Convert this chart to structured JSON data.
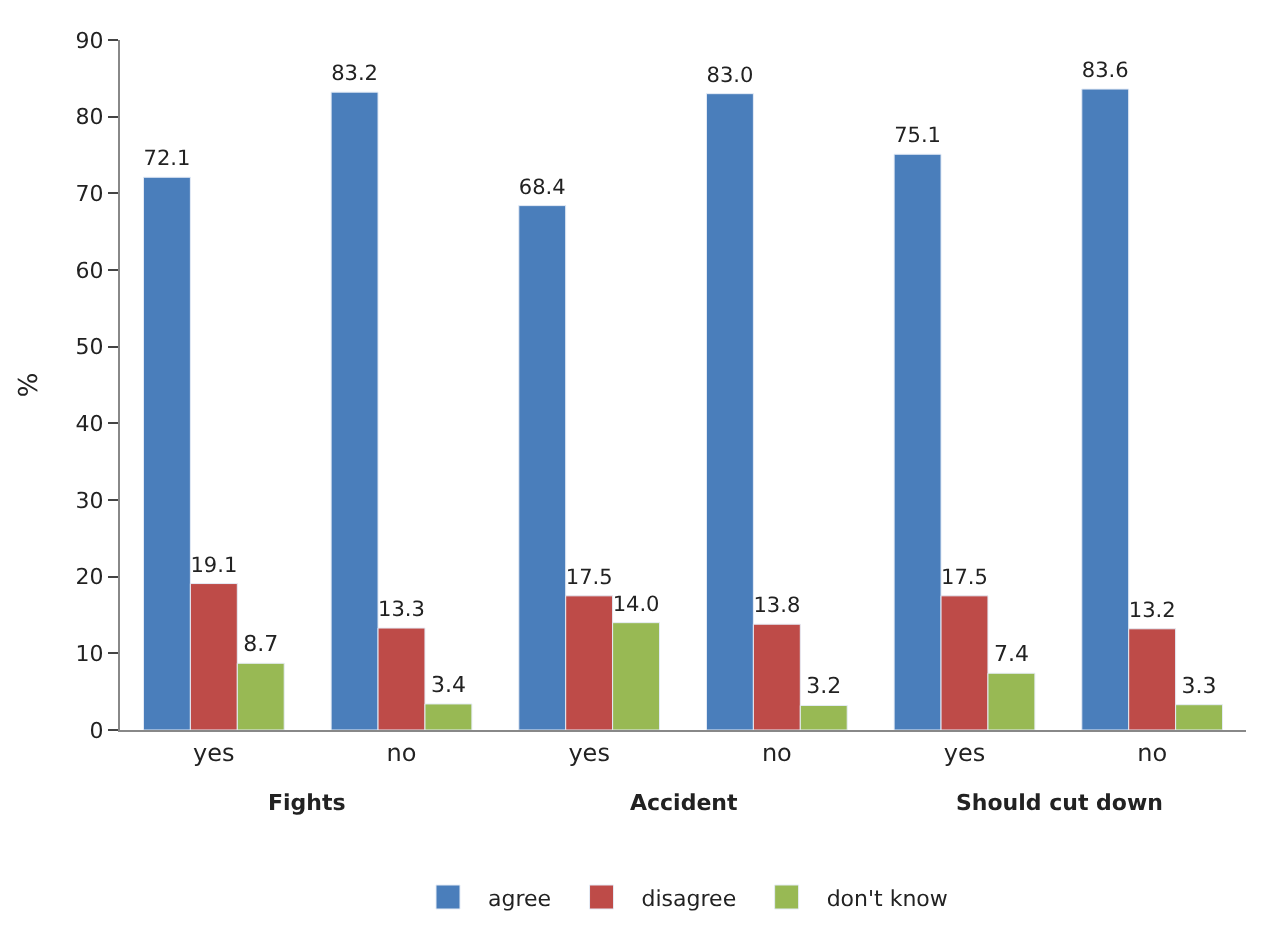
{
  "chart_data": {
    "type": "bar",
    "ylabel": "%",
    "categories": [
      "yes",
      "no",
      "yes",
      "no",
      "yes",
      "no"
    ],
    "annotations": [
      "Fights",
      "Accident",
      "Should cut down"
    ],
    "series": [
      {
        "name": "agree",
        "color": "#4a7ebb",
        "values": [
          72.1,
          83.2,
          68.4,
          83.0,
          75.1,
          83.6
        ],
        "value_labels": [
          "72.1",
          "83.2",
          "68.4",
          "83.0",
          "75.1",
          "83.6"
        ]
      },
      {
        "name": "disagree",
        "color": "#be4b48",
        "values": [
          19.1,
          13.3,
          17.5,
          13.8,
          17.5,
          13.2
        ],
        "value_labels": [
          "19.1",
          "13.3",
          "17.5",
          "13.8",
          "17.5",
          "13.2"
        ]
      },
      {
        "name": "don't know",
        "color": "#98b954",
        "values": [
          8.7,
          3.4,
          14.0,
          3.2,
          7.4,
          3.3
        ],
        "value_labels": [
          "8.7",
          "3.4",
          "14.0",
          "3.2",
          "7.4",
          "3.3"
        ]
      }
    ],
    "ylim": [
      0,
      90
    ],
    "yticks": [
      0,
      10,
      20,
      30,
      40,
      50,
      60,
      70,
      80,
      90
    ],
    "legend": "bottom"
  }
}
